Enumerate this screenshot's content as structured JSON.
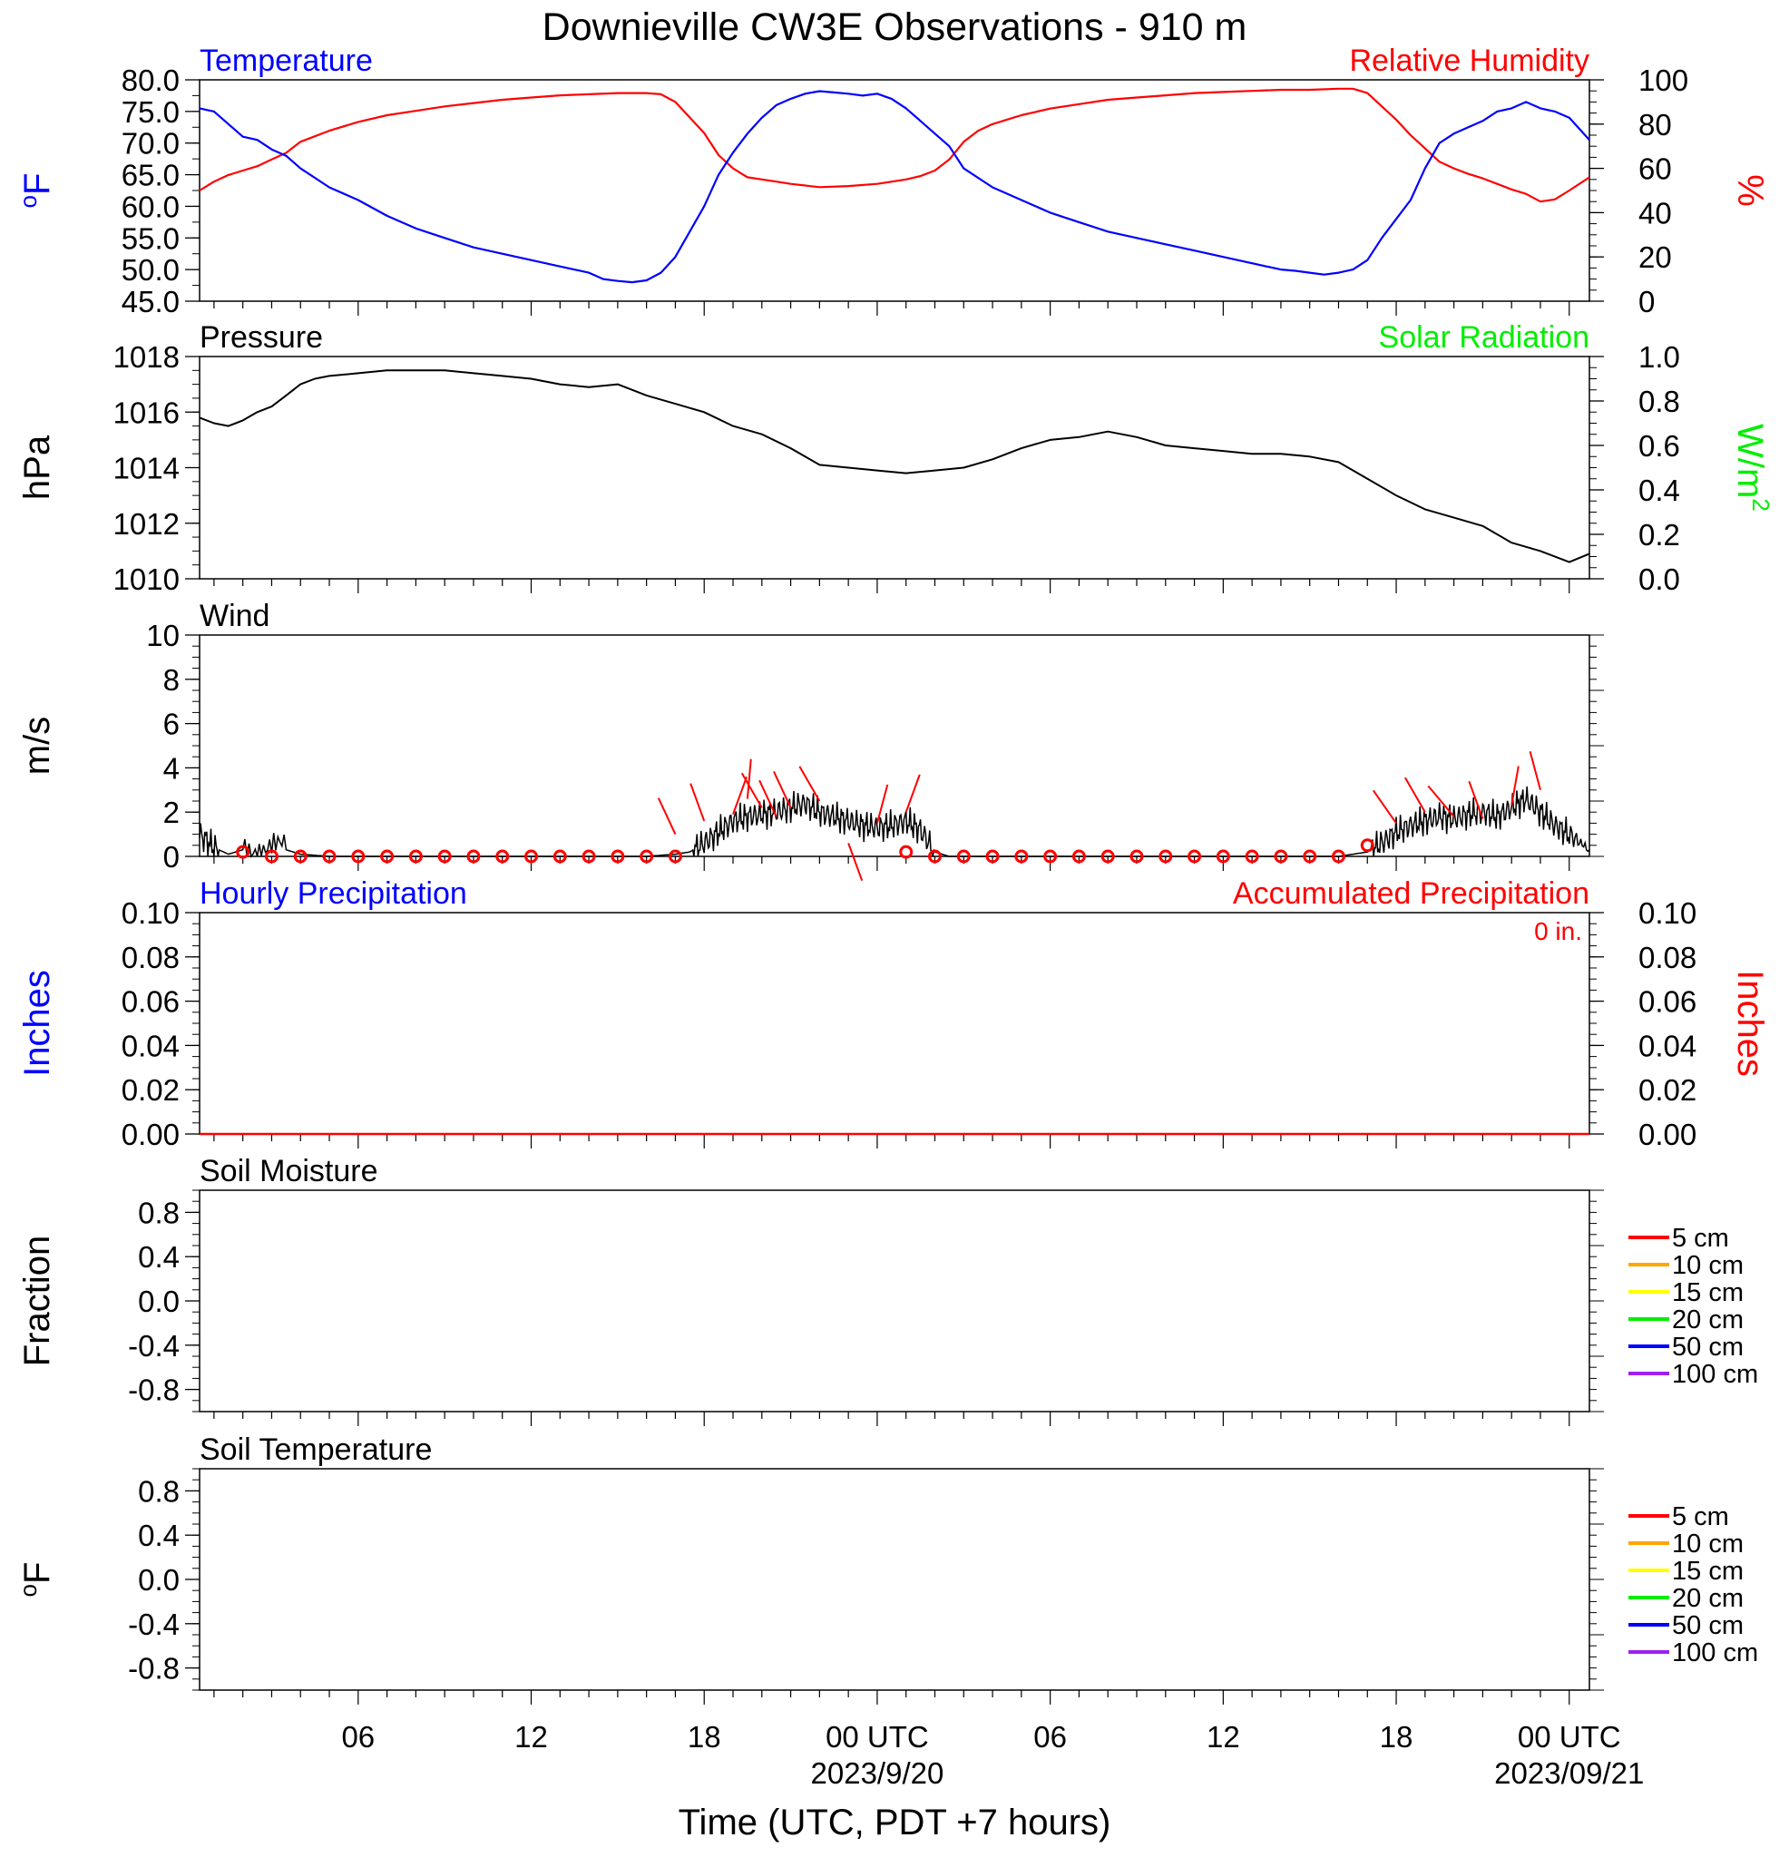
{
  "title": "Downieville CW3E Observations - 910 m",
  "xlabel": "Time (UTC, PDT +7 hours)",
  "x_ticks": [
    {
      "label": "06",
      "date": ""
    },
    {
      "label": "12",
      "date": ""
    },
    {
      "label": "18",
      "date": ""
    },
    {
      "label": "00 UTC",
      "date": "2023/9/20"
    },
    {
      "label": "06",
      "date": ""
    },
    {
      "label": "12",
      "date": ""
    },
    {
      "label": "18",
      "date": ""
    },
    {
      "label": "00 UTC",
      "date": "2023/09/21"
    }
  ],
  "colors": {
    "temperature": "#0000ff",
    "humidity": "#ff0000",
    "pressure": "#000000",
    "solar": "#00ee00",
    "wind": "#000000",
    "barbs": "#ff0000",
    "precip_hourly": "#0000ff",
    "precip_accum": "#ff0000"
  },
  "legend_depths": [
    {
      "label": "5 cm",
      "color": "#ff0000"
    },
    {
      "label": "10 cm",
      "color": "#ffa500"
    },
    {
      "label": "15 cm",
      "color": "#ffff00"
    },
    {
      "label": "20 cm",
      "color": "#00ee00"
    },
    {
      "label": "50 cm",
      "color": "#0000ff"
    },
    {
      "label": "100 cm",
      "color": "#a020f0"
    }
  ],
  "chart_data": [
    {
      "type": "line",
      "panel": "temperature-humidity",
      "left_label": "Temperature",
      "right_label": "Relative Humidity",
      "left_axis_title": "oF",
      "right_axis_title": "%",
      "x_unit": "hours since 2023-09-19 00:00 UTC",
      "xlim": [
        0.5,
        48.7
      ],
      "ylim_left": [
        45,
        80
      ],
      "ylim_right": [
        0,
        100
      ],
      "left_ticks": [
        "80.0",
        "75.0",
        "70.0",
        "65.0",
        "60.0",
        "55.0",
        "50.0",
        "45.0"
      ],
      "right_ticks": [
        "100",
        "80",
        "60",
        "40",
        "20",
        "0"
      ],
      "series": [
        {
          "name": "Temperature",
          "axis": "left",
          "x": [
            0.5,
            1.0,
            1.5,
            2.0,
            2.5,
            3.0,
            3.5,
            4.0,
            5.0,
            6.0,
            7.0,
            8.0,
            9.0,
            10.0,
            11.0,
            12.0,
            13.0,
            14.0,
            14.5,
            15.0,
            15.5,
            16.0,
            16.5,
            17.0,
            17.5,
            18.0,
            18.5,
            19.0,
            19.5,
            20.0,
            20.5,
            21.0,
            21.5,
            22.0,
            22.5,
            23.0,
            23.5,
            24.0,
            24.5,
            25.0,
            25.5,
            26.0,
            26.5,
            27.0,
            28.0,
            29.0,
            30.0,
            31.0,
            32.0,
            33.0,
            34.0,
            35.0,
            36.0,
            37.0,
            37.5,
            38.0,
            38.5,
            39.0,
            39.5,
            40.0,
            40.5,
            41.0,
            41.5,
            42.0,
            42.5,
            43.0,
            43.5,
            44.0,
            44.5,
            45.0,
            45.5,
            46.0,
            46.5,
            47.0,
            47.5,
            48.0,
            48.7
          ],
          "y": [
            75.5,
            75.0,
            73.0,
            71.0,
            70.5,
            69.0,
            68.0,
            66.0,
            63.0,
            61.0,
            58.5,
            56.5,
            55.0,
            53.5,
            52.5,
            51.5,
            50.5,
            49.5,
            48.5,
            48.2,
            48.0,
            48.3,
            49.5,
            52.0,
            56.0,
            60.0,
            65.0,
            68.5,
            71.5,
            74.0,
            76.0,
            77.0,
            77.8,
            78.2,
            78.0,
            77.8,
            77.5,
            77.8,
            77.0,
            75.5,
            73.5,
            71.5,
            69.5,
            66.0,
            63.0,
            61.0,
            59.0,
            57.5,
            56.0,
            55.0,
            54.0,
            53.0,
            52.0,
            51.0,
            50.5,
            50.0,
            49.8,
            49.5,
            49.2,
            49.5,
            50.0,
            51.5,
            55.0,
            58.0,
            61.0,
            66.0,
            70.0,
            71.5,
            72.5,
            73.5,
            75.0,
            75.5,
            76.5,
            75.5,
            75.0,
            74.0,
            70.5
          ]
        },
        {
          "name": "Relative Humidity",
          "axis": "right",
          "x": [
            0.5,
            1.0,
            1.5,
            2.0,
            2.5,
            3.0,
            3.5,
            4.0,
            5.0,
            6.0,
            7.0,
            8.0,
            9.0,
            10.0,
            11.0,
            12.0,
            13.0,
            14.0,
            15.0,
            16.0,
            16.5,
            17.0,
            17.5,
            18.0,
            18.5,
            19.0,
            19.5,
            20.0,
            20.5,
            21.0,
            22.0,
            23.0,
            24.0,
            25.0,
            25.5,
            26.0,
            26.5,
            27.0,
            27.5,
            28.0,
            29.0,
            30.0,
            31.0,
            32.0,
            33.0,
            34.0,
            35.0,
            36.0,
            37.0,
            38.0,
            39.0,
            40.0,
            40.5,
            41.0,
            41.5,
            42.0,
            42.5,
            43.0,
            43.5,
            44.0,
            44.5,
            45.0,
            45.5,
            46.0,
            46.5,
            47.0,
            47.5,
            48.0,
            48.7
          ],
          "y": [
            50.0,
            54.0,
            57.0,
            59.0,
            61.0,
            64.0,
            67.0,
            72.0,
            77.0,
            81.0,
            84.0,
            86.0,
            88.0,
            89.5,
            91.0,
            92.0,
            93.0,
            93.5,
            94.0,
            94.0,
            93.5,
            90.0,
            83.0,
            76.0,
            66.0,
            60.0,
            56.0,
            55.0,
            54.0,
            53.0,
            51.5,
            52.0,
            53.0,
            55.0,
            56.5,
            59.0,
            64.0,
            72.0,
            77.0,
            80.0,
            84.0,
            87.0,
            89.0,
            91.0,
            92.0,
            93.0,
            94.0,
            94.5,
            95.0,
            95.5,
            95.5,
            96.0,
            96.0,
            94.0,
            88.0,
            82.0,
            75.0,
            69.0,
            63.0,
            60.0,
            57.5,
            55.5,
            53.0,
            50.5,
            48.5,
            45.0,
            46.0,
            50.0,
            56.0
          ]
        }
      ]
    },
    {
      "type": "line",
      "panel": "pressure-solar",
      "left_label": "Pressure",
      "right_label": "Solar Radiation",
      "left_axis_title": "hPa",
      "right_axis_title": "W/m2",
      "x_unit": "hours since 2023-09-19 00:00 UTC",
      "xlim": [
        0.5,
        48.7
      ],
      "ylim_left": [
        1010,
        1018
      ],
      "ylim_right": [
        0.0,
        1.0
      ],
      "left_ticks": [
        "1018",
        "1016",
        "1014",
        "1012",
        "1010"
      ],
      "right_ticks": [
        "1.0",
        "0.8",
        "0.6",
        "0.4",
        "0.2",
        "0.0"
      ],
      "series": [
        {
          "name": "Pressure",
          "axis": "left",
          "x": [
            0.5,
            1.0,
            1.5,
            2.0,
            2.5,
            3.0,
            3.5,
            4.0,
            4.5,
            5.0,
            6.0,
            7.0,
            8.0,
            9.0,
            10.0,
            11.0,
            12.0,
            13.0,
            14.0,
            15.0,
            16.0,
            17.0,
            18.0,
            19.0,
            20.0,
            21.0,
            22.0,
            23.0,
            24.0,
            25.0,
            26.0,
            27.0,
            28.0,
            29.0,
            30.0,
            31.0,
            32.0,
            33.0,
            34.0,
            35.0,
            36.0,
            37.0,
            38.0,
            39.0,
            40.0,
            41.0,
            42.0,
            43.0,
            44.0,
            45.0,
            46.0,
            47.0,
            48.0,
            48.7
          ],
          "y": [
            1015.8,
            1015.6,
            1015.5,
            1015.7,
            1016.0,
            1016.2,
            1016.6,
            1017.0,
            1017.2,
            1017.3,
            1017.4,
            1017.5,
            1017.5,
            1017.5,
            1017.4,
            1017.3,
            1017.2,
            1017.0,
            1016.9,
            1017.0,
            1016.6,
            1016.3,
            1016.0,
            1015.5,
            1015.2,
            1014.7,
            1014.1,
            1014.0,
            1013.9,
            1013.8,
            1013.9,
            1014.0,
            1014.3,
            1014.7,
            1015.0,
            1015.1,
            1015.3,
            1015.1,
            1014.8,
            1014.7,
            1014.6,
            1014.5,
            1014.5,
            1014.4,
            1014.2,
            1013.6,
            1013.0,
            1012.5,
            1012.2,
            1011.9,
            1011.3,
            1011.0,
            1010.6,
            1010.9
          ]
        }
      ]
    },
    {
      "type": "line",
      "panel": "wind",
      "left_label": "Wind",
      "left_axis_title": "m/s",
      "x_unit": "hours since 2023-09-19 00:00 UTC",
      "xlim": [
        0.5,
        48.7
      ],
      "ylim_left": [
        0,
        10
      ],
      "left_ticks": [
        "10",
        "8",
        "6",
        "4",
        "2",
        "0"
      ],
      "series": [
        {
          "name": "Wind",
          "axis": "left",
          "x": [
            0.5,
            1.0,
            1.5,
            2.0,
            3.0,
            4.0,
            5.0,
            6.0,
            8.0,
            10.0,
            12.0,
            14.0,
            16.0,
            17.0,
            17.5,
            18.0,
            18.5,
            19.0,
            19.5,
            20.0,
            20.5,
            21.0,
            21.5,
            22.0,
            22.5,
            23.0,
            23.5,
            24.0,
            24.5,
            25.0,
            25.5,
            26.0,
            26.5,
            27.0,
            28.0,
            30.0,
            32.0,
            34.0,
            36.0,
            38.0,
            40.0,
            41.0,
            41.5,
            42.0,
            42.5,
            43.0,
            43.5,
            44.0,
            44.5,
            45.0,
            45.5,
            46.0,
            46.5,
            47.0,
            47.5,
            48.0,
            48.7
          ],
          "y": [
            1.0,
            0.4,
            0.1,
            0.3,
            0.5,
            0.1,
            0.0,
            0.0,
            0.0,
            0.0,
            0.0,
            0.0,
            0.0,
            0.1,
            0.2,
            0.6,
            1.1,
            1.6,
            1.8,
            1.9,
            2.0,
            2.2,
            2.4,
            2.0,
            1.8,
            1.6,
            1.4,
            1.3,
            1.4,
            1.6,
            1.2,
            0.2,
            0.0,
            0.0,
            0.0,
            0.0,
            0.0,
            0.0,
            0.0,
            0.0,
            0.0,
            0.2,
            0.6,
            1.1,
            1.4,
            1.6,
            1.8,
            1.7,
            1.9,
            2.0,
            1.8,
            2.2,
            2.6,
            2.0,
            1.4,
            1.0,
            0.3
          ]
        },
        {
          "name": "",
          "kind": "barbs",
          "x": [
            17.0,
            18.0,
            19.0,
            19.5,
            20.0,
            20.5,
            21.0,
            22.0,
            23.0,
            24.0,
            25.0,
            42.0,
            43.0,
            44.0,
            45.0,
            46.0,
            47.0
          ],
          "y": [
            1.0,
            1.6,
            1.9,
            2.6,
            2.2,
            1.8,
            2.2,
            2.5,
            0.6,
            1.5,
            2.0,
            1.5,
            2.0,
            1.8,
            1.7,
            2.3,
            3.0
          ]
        },
        {
          "name": "",
          "kind": "calm-circles",
          "x": [
            2,
            3,
            4,
            5,
            6,
            7,
            8,
            9,
            10,
            11,
            12,
            13,
            14,
            15,
            16,
            17,
            25,
            26,
            27,
            28,
            29,
            30,
            31,
            32,
            33,
            34,
            35,
            36,
            37,
            38,
            39,
            40,
            41
          ],
          "y": [
            0.2,
            0,
            0,
            0,
            0,
            0,
            0,
            0,
            0,
            0,
            0,
            0,
            0,
            0,
            0,
            0,
            0.2,
            0,
            0,
            0,
            0,
            0,
            0,
            0,
            0,
            0,
            0,
            0,
            0,
            0,
            0,
            0,
            0.5
          ]
        }
      ]
    },
    {
      "type": "line",
      "panel": "precipitation",
      "left_label": "Hourly Precipitation",
      "right_label": "Accumulated Precipitation",
      "annotation": "0 in.",
      "left_axis_title": "Inches",
      "right_axis_title": "Inches",
      "x_unit": "hours since 2023-09-19 00:00 UTC",
      "xlim": [
        0.5,
        48.7
      ],
      "ylim_left": [
        0,
        0.1
      ],
      "ylim_right": [
        0,
        0.1
      ],
      "left_ticks": [
        "0.10",
        "0.08",
        "0.06",
        "0.04",
        "0.02",
        "0.00"
      ],
      "right_ticks": [
        "0.10",
        "0.08",
        "0.06",
        "0.04",
        "0.02",
        "0.00"
      ],
      "series": [
        {
          "name": "Accumulated Precipitation",
          "axis": "right",
          "x": [
            0.5,
            48.7
          ],
          "y": [
            0,
            0
          ]
        }
      ]
    },
    {
      "type": "line",
      "panel": "soil-moisture",
      "left_label": "Soil Moisture",
      "left_axis_title": "Fraction",
      "ylim_left": [
        -1.0,
        1.0
      ],
      "left_ticks": [
        "0.8",
        "0.4",
        "0.0",
        "-0.4",
        "-0.8"
      ],
      "series": []
    },
    {
      "type": "line",
      "panel": "soil-temperature",
      "left_label": "Soil Temperature",
      "left_axis_title": "oF",
      "ylim_left": [
        -1.0,
        1.0
      ],
      "left_ticks": [
        "0.8",
        "0.4",
        "0.0",
        "-0.4",
        "-0.8"
      ],
      "series": []
    }
  ]
}
